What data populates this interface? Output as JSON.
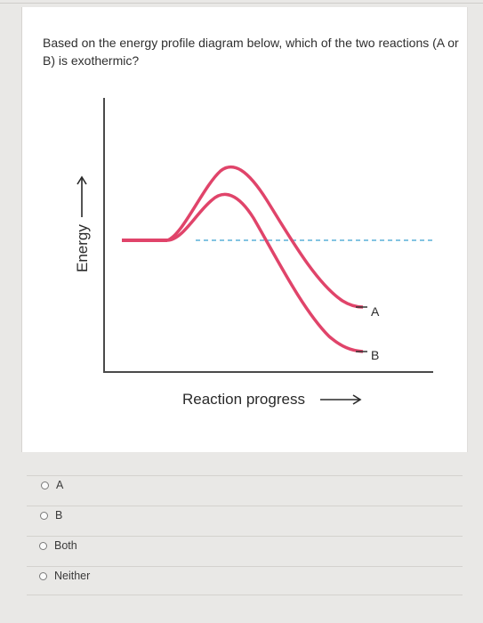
{
  "question": {
    "text": "Based on the energy profile diagram below, which of the two reactions (A or B) is exothermic?"
  },
  "diagram": {
    "y_axis_label": "Energy",
    "x_axis_label": "Reaction progress",
    "curve_a_label": "A",
    "curve_b_label": "B",
    "curve_color": "#e0446a",
    "dashed_line_color": "#5ab0d8",
    "axis_color": "#4a4a4a"
  },
  "options": [
    {
      "label": "A"
    },
    {
      "label": "B"
    },
    {
      "label": "Both"
    },
    {
      "label": "Neither"
    }
  ]
}
